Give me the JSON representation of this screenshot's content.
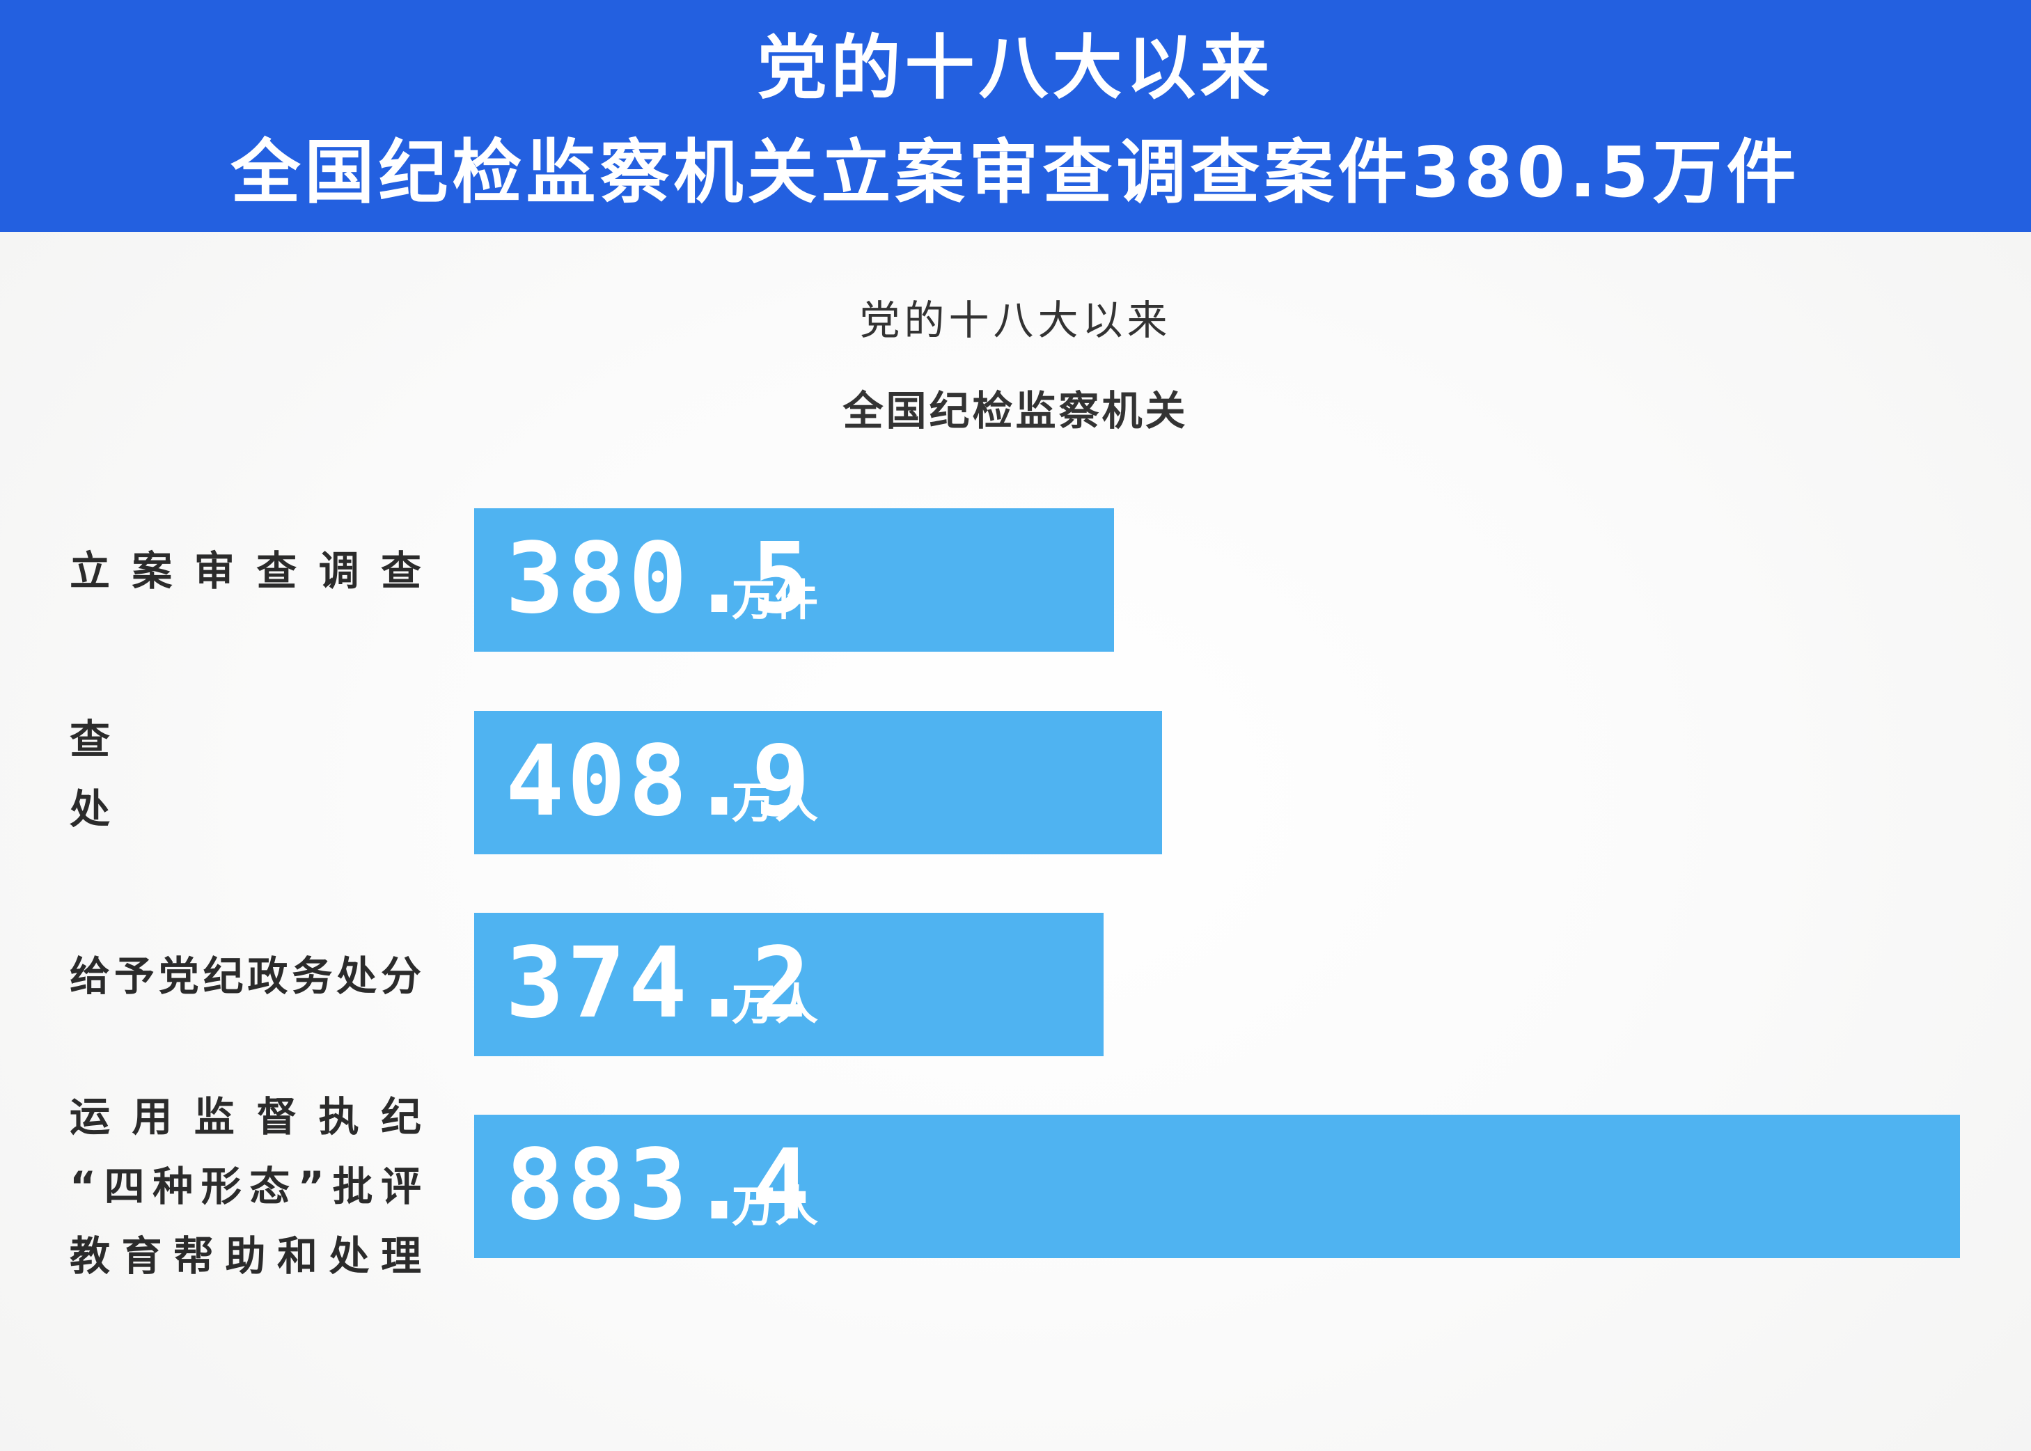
{
  "header": {
    "line1": "党的十八大以来",
    "line2": "全国纪检监察机关立案审查调查案件380.5万件"
  },
  "subtitle": {
    "line1": "党的十八大以来",
    "line2": "全国纪检监察机关"
  },
  "colors": {
    "header_bg": "#2360e0",
    "bar": "#4fb3f1",
    "text": "#2b2b2b"
  },
  "chart_data": {
    "type": "bar",
    "orientation": "horizontal",
    "categories": [
      [
        "立案审查调查"
      ],
      [
        "查",
        "处"
      ],
      [
        "给予党纪政务处分"
      ],
      [
        "运用监督执纪",
        "“四种形态”批评",
        "教育帮助和处理"
      ]
    ],
    "values": [
      380.5,
      408.9,
      374.2,
      883.4
    ],
    "value_labels": [
      "380.5",
      "408.9",
      "374.2",
      "883.4"
    ],
    "units": [
      "万件",
      "万人",
      "万人",
      "万人"
    ],
    "xlim": [
      0,
      883.4
    ]
  }
}
